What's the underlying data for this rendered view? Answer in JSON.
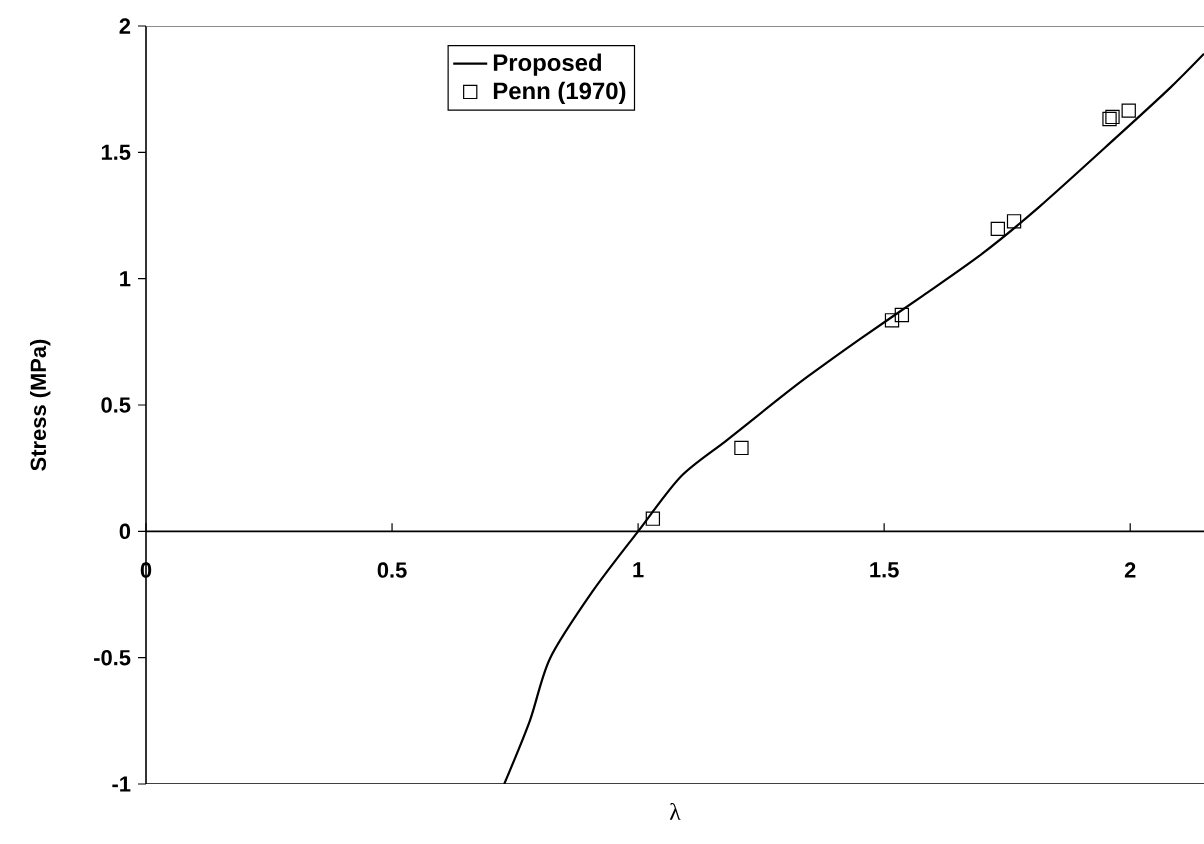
{
  "chart_data": {
    "type": "line",
    "xlabel": "λ",
    "ylabel": "Stress (MPa)",
    "xlim": [
      0,
      2.15
    ],
    "ylim": [
      -1,
      2
    ],
    "xticks": [
      0,
      0.5,
      1,
      1.5,
      2
    ],
    "yticks": [
      -1,
      -0.5,
      0,
      0.5,
      1,
      1.5,
      2
    ],
    "legend": "top left",
    "grid": false,
    "series": [
      {
        "name": "Proposed",
        "color": "#000000",
        "marker": "none",
        "line_style": "solid",
        "x": [
          0.728,
          0.78,
          0.821,
          0.907,
          1.0,
          1.087,
          1.18,
          1.283,
          1.345,
          1.45,
          1.579,
          1.7,
          1.814,
          1.97,
          2.08,
          2.15
        ],
        "values": [
          -1,
          -0.75,
          -0.503,
          -0.239,
          0,
          0.217,
          0.36,
          0.52,
          0.613,
          0.76,
          0.933,
          1.1,
          1.282,
          1.556,
          1.753,
          1.89
        ]
      },
      {
        "name": "Penn (1970)",
        "type": "scatter",
        "color": "#000000",
        "marker": "square",
        "x": [
          1.03,
          1.21,
          1.516,
          1.536,
          1.731,
          1.764,
          1.958,
          1.964,
          1.997
        ],
        "values": [
          0.05,
          0.33,
          0.835,
          0.856,
          1.197,
          1.227,
          1.632,
          1.64,
          1.665
        ]
      }
    ]
  }
}
